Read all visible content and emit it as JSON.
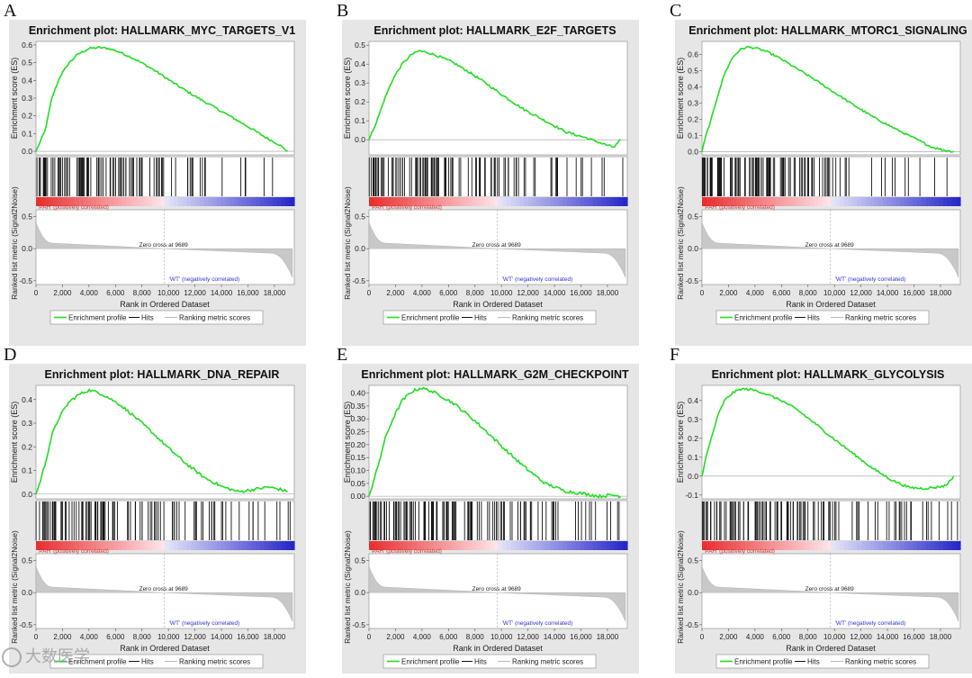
{
  "figure": {
    "common": {
      "xlabel": "Rank in Ordered Dataset",
      "es_ylabel": "Enrichment score (ES)",
      "metric_ylabel": "Ranked list metric (Signal2Noise)",
      "pos_label": "'PAH' (positively correlated)",
      "neg_label": "'WT' (negatively correlated)",
      "zero_cross": "Zero cross at 9689",
      "legend": [
        "Enrichment profile",
        "Hits",
        "Ranking metric scores"
      ],
      "x_ticks": [
        "0",
        "2,000",
        "4,000",
        "6,000",
        "8,000",
        "10,000",
        "12,000",
        "14,000",
        "16,000",
        "18,000"
      ],
      "metric_ticks": [
        "0.5",
        "0.0",
        "-0.5"
      ]
    },
    "watermark": "大数医学"
  },
  "colors": {
    "panel_bg": "#e6e6e6",
    "plot_bg": "#ffffff",
    "es_line": "#22dd22",
    "hit": "#111111",
    "metric_fill": "#c8c8c8",
    "pos": "#e83030",
    "neg": "#2020c0",
    "pos_text": "#cc3333",
    "neg_text": "#3333cc"
  },
  "chart_data": [
    {
      "panel": "A",
      "type": "line",
      "title": "Enrichment plot: HALLMARK_MYC_TARGETS_V1",
      "xlabel": "Rank in Ordered Dataset",
      "ylabel": "Enrichment score (ES)",
      "xlim": [
        0,
        19500
      ],
      "ylim": [
        -0.02,
        0.62
      ],
      "yticks": [
        0.0,
        0.1,
        0.2,
        0.3,
        0.4,
        0.5,
        0.6
      ],
      "ytick_labels": [
        "0.0",
        "0.1",
        "0.2",
        "0.3",
        "0.4",
        "0.5",
        "0.6"
      ],
      "es_profile": {
        "x": [
          0,
          300,
          700,
          1200,
          1800,
          2500,
          3200,
          4000,
          4800,
          5500,
          6300,
          7200,
          8200,
          9300,
          10500,
          11800,
          13200,
          14600,
          16000,
          17300,
          18300,
          19000
        ],
        "y": [
          0.0,
          0.05,
          0.12,
          0.3,
          0.42,
          0.5,
          0.55,
          0.58,
          0.585,
          0.58,
          0.56,
          0.53,
          0.49,
          0.44,
          0.38,
          0.32,
          0.26,
          0.2,
          0.14,
          0.08,
          0.04,
          0.0
        ]
      },
      "hit_density": [
        16,
        14,
        12,
        10,
        5,
        3,
        2,
        1.5
      ]
    },
    {
      "panel": "B",
      "type": "line",
      "title": "Enrichment plot: HALLMARK_E2F_TARGETS",
      "xlabel": "Rank in Ordered Dataset",
      "ylabel": "Enrichment score (ES)",
      "xlim": [
        0,
        19500
      ],
      "ylim": [
        -0.08,
        0.52
      ],
      "yticks": [
        0.0,
        0.1,
        0.2,
        0.3,
        0.4,
        0.5
      ],
      "ytick_labels": [
        "0.0",
        "0.1",
        "0.2",
        "0.3",
        "0.4",
        "0.5"
      ],
      "es_profile": {
        "x": [
          0,
          300,
          700,
          1200,
          1800,
          2500,
          3200,
          3800,
          4500,
          5300,
          6300,
          7500,
          8800,
          10200,
          11700,
          13300,
          14900,
          16400,
          17600,
          18500,
          19000
        ],
        "y": [
          0.0,
          0.05,
          0.12,
          0.22,
          0.32,
          0.4,
          0.45,
          0.47,
          0.46,
          0.44,
          0.41,
          0.36,
          0.3,
          0.23,
          0.16,
          0.1,
          0.04,
          0.01,
          -0.02,
          -0.04,
          0.0
        ]
      },
      "hit_density": [
        16,
        14,
        12,
        10,
        7,
        5,
        3,
        2
      ]
    },
    {
      "panel": "C",
      "type": "line",
      "title": "Enrichment plot: HALLMARK_MTORC1_SIGNALING",
      "xlabel": "Rank in Ordered Dataset",
      "ylabel": "Enrichment score (ES)",
      "xlim": [
        0,
        19500
      ],
      "ylim": [
        -0.02,
        0.68
      ],
      "yticks": [
        0.0,
        0.1,
        0.2,
        0.3,
        0.4,
        0.5,
        0.6
      ],
      "ytick_labels": [
        "0.0",
        "0.1",
        "0.2",
        "0.3",
        "0.4",
        "0.5",
        "0.6"
      ],
      "es_profile": {
        "x": [
          0,
          300,
          700,
          1200,
          1700,
          2300,
          2900,
          3400,
          4000,
          4800,
          5800,
          7000,
          8400,
          9900,
          11400,
          13000,
          14600,
          16100,
          17300,
          18200,
          19000
        ],
        "y": [
          0.0,
          0.1,
          0.2,
          0.35,
          0.48,
          0.58,
          0.63,
          0.645,
          0.64,
          0.62,
          0.58,
          0.52,
          0.45,
          0.37,
          0.29,
          0.21,
          0.14,
          0.08,
          0.03,
          0.01,
          0.0
        ]
      },
      "hit_density": [
        18,
        16,
        14,
        12,
        4,
        3,
        2,
        1.5
      ]
    },
    {
      "panel": "D",
      "type": "line",
      "title": "Enrichment plot: HALLMARK_DNA_REPAIR",
      "xlabel": "Rank in Ordered Dataset",
      "ylabel": "Enrichment score (ES)",
      "xlim": [
        0,
        19500
      ],
      "ylim": [
        -0.02,
        0.46
      ],
      "yticks": [
        0.0,
        0.1,
        0.2,
        0.3,
        0.4
      ],
      "ytick_labels": [
        "0.0",
        "0.1",
        "0.2",
        "0.3",
        "0.4"
      ],
      "es_profile": {
        "x": [
          0,
          300,
          700,
          1200,
          1800,
          2500,
          3200,
          4000,
          4700,
          5400,
          6300,
          7400,
          8600,
          9900,
          11300,
          12700,
          14100,
          15300,
          16500,
          17500,
          18400,
          19000
        ],
        "y": [
          0.0,
          0.05,
          0.13,
          0.25,
          0.33,
          0.39,
          0.42,
          0.44,
          0.43,
          0.41,
          0.38,
          0.33,
          0.27,
          0.2,
          0.13,
          0.07,
          0.03,
          0.01,
          0.02,
          0.03,
          0.02,
          0.01
        ]
      },
      "hit_density": [
        14,
        12,
        10,
        9,
        7,
        6,
        4,
        3
      ]
    },
    {
      "panel": "E",
      "type": "line",
      "title": "Enrichment plot: HALLMARK_G2M_CHECKPOINT",
      "xlabel": "Rank in Ordered Dataset",
      "ylabel": "Enrichment score (ES)",
      "xlim": [
        0,
        19500
      ],
      "ylim": [
        -0.01,
        0.43
      ],
      "yticks": [
        0.0,
        0.05,
        0.1,
        0.15,
        0.2,
        0.25,
        0.3,
        0.35,
        0.4
      ],
      "ytick_labels": [
        "0.00",
        "0.05",
        "0.10",
        "0.15",
        "0.20",
        "0.25",
        "0.30",
        "0.35",
        "0.40"
      ],
      "es_profile": {
        "x": [
          0,
          300,
          700,
          1200,
          1800,
          2500,
          3200,
          3900,
          4600,
          5400,
          6400,
          7600,
          8900,
          10300,
          11800,
          13300,
          14800,
          16200,
          17400,
          18400,
          19000
        ],
        "y": [
          0.0,
          0.05,
          0.12,
          0.22,
          0.3,
          0.37,
          0.405,
          0.42,
          0.41,
          0.39,
          0.36,
          0.31,
          0.25,
          0.18,
          0.11,
          0.05,
          0.02,
          0.01,
          0.0,
          0.005,
          0.0
        ]
      },
      "hit_density": [
        16,
        14,
        12,
        10,
        8,
        6,
        4,
        3
      ]
    },
    {
      "panel": "F",
      "type": "line",
      "title": "Enrichment plot: HALLMARK_GLYCOLYSIS",
      "xlabel": "Rank in Ordered Dataset",
      "ylabel": "Enrichment score (ES)",
      "xlim": [
        0,
        19500
      ],
      "ylim": [
        -0.12,
        0.48
      ],
      "yticks": [
        -0.1,
        0.0,
        0.1,
        0.2,
        0.3,
        0.4
      ],
      "ytick_labels": [
        "-0.1",
        "0.0",
        "0.1",
        "0.2",
        "0.3",
        "0.4"
      ],
      "es_profile": {
        "x": [
          0,
          300,
          700,
          1200,
          1700,
          2300,
          2900,
          3500,
          4200,
          5000,
          6000,
          7200,
          8500,
          9900,
          11400,
          12900,
          14300,
          15600,
          16700,
          17600,
          18400,
          19000
        ],
        "y": [
          0.0,
          0.1,
          0.2,
          0.32,
          0.4,
          0.44,
          0.46,
          0.46,
          0.45,
          0.43,
          0.4,
          0.35,
          0.28,
          0.2,
          0.12,
          0.04,
          -0.02,
          -0.06,
          -0.065,
          -0.06,
          -0.05,
          0.0
        ]
      },
      "hit_density": [
        14,
        13,
        12,
        10,
        5,
        4,
        6,
        4
      ]
    }
  ]
}
